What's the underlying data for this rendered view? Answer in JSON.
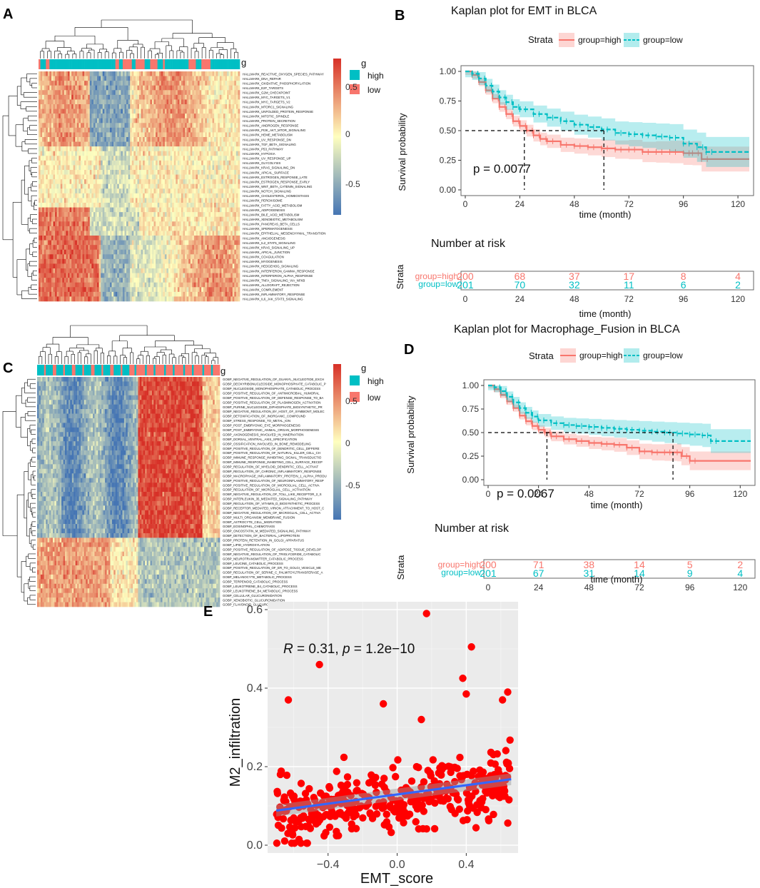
{
  "panel_labels": [
    "A",
    "B",
    "C",
    "D",
    "E"
  ],
  "colors": {
    "high": "#f8766d",
    "low": "#00bfc4",
    "heat_pos": "#d73027",
    "heat_neg": "#4575b4",
    "heat_mid": "#ffffbf",
    "scatter_pt": "#ff0000",
    "fit_line": "#3366ff",
    "panel_bg": "#ebebeb"
  },
  "chart_data": [
    {
      "id": "A",
      "type": "heatmap",
      "annotation_label": "g",
      "legend_title": "g",
      "legend_items": [
        "high",
        "low"
      ],
      "colorbar_ticks": [
        "0.5",
        "0",
        "-0.5"
      ],
      "row_labels": [
        "HALLMARK_REACTIVE_OXYGEN_SPECIES_PATHWAY",
        "HALLMARK_DNA_REPAIR",
        "HALLMARK_OXIDATIVE_PHOSPHORYLATION",
        "HALLMARK_E2F_TARGETS",
        "HALLMARK_G2M_CHECKPOINT",
        "HALLMARK_MYC_TARGETS_V1",
        "HALLMARK_MYC_TARGETS_V2",
        "HALLMARK_MTORC1_SIGNALING",
        "HALLMARK_UNFOLDED_PROTEIN_RESPONSE",
        "HALLMARK_MITOTIC_SPINDLE",
        "HALLMARK_PROTEIN_SECRETION",
        "HALLMARK_ANDROGEN_RESPONSE",
        "HALLMARK_PI3K_AKT_MTOR_SIGNALING",
        "HALLMARK_HEME_METABOLISM",
        "HALLMARK_UV_RESPONSE_DN",
        "HALLMARK_TGF_BETA_SIGNALING",
        "HALLMARK_P53_PATHWAY",
        "HALLMARK_HYPOXIA",
        "HALLMARK_UV_RESPONSE_UP",
        "HALLMARK_GLYCOLYSIS",
        "HALLMARK_KRAS_SIGNALING_DN",
        "HALLMARK_APICAL_SURFACE",
        "HALLMARK_ESTROGEN_RESPONSE_LATE",
        "HALLMARK_ESTROGEN_RESPONSE_EARLY",
        "HALLMARK_WNT_BETA_CATENIN_SIGNALING",
        "HALLMARK_NOTCH_SIGNALING",
        "HALLMARK_CHOLESTEROL_HOMEOSTASIS",
        "HALLMARK_PEROXISOME",
        "HALLMARK_FATTY_ACID_METABOLISM",
        "HALLMARK_ADIPOGENESIS",
        "HALLMARK_BILE_ACID_METABOLISM",
        "HALLMARK_XENOBIOTIC_METABOLISM",
        "HALLMARK_PANCREAS_BETA_CELLS",
        "HALLMARK_SPERMATOGENESIS",
        "HALLMARK_EPITHELIAL_MESENCHYMAL_TRANSITION",
        "HALLMARK_ANGIOGENESIS",
        "HALLMARK_IL2_STAT5_SIGNALING",
        "HALLMARK_KRAS_SIGNALING_UP",
        "HALLMARK_APICAL_JUNCTION",
        "HALLMARK_COAGULATION",
        "HALLMARK_MYOGENESIS",
        "HALLMARK_HEDGEHOG_SIGNALING",
        "HALLMARK_INTERFERON_GAMMA_RESPONSE",
        "HALLMARK_INTERFERON_ALPHA_RESPONSE",
        "HALLMARK_TNFA_SIGNALING_VIA_NFKB",
        "HALLMARK_ALLOGRAFT_REJECTION",
        "HALLMARK_COMPLEMENT",
        "HALLMARK_INFLAMMATORY_RESPONSE",
        "HALLMARK_IL6_JAK_STAT3_SIGNALING"
      ]
    },
    {
      "id": "B",
      "type": "line",
      "title": "Kaplan plot for EMT in BLCA",
      "legend_title": "Strata",
      "legend_items": [
        "group=high",
        "group=low"
      ],
      "xlabel": "time (month)",
      "ylabel": "Survival probability",
      "xlim": [
        0,
        125
      ],
      "ylim": [
        0,
        1
      ],
      "xticks": [
        "0",
        "24",
        "48",
        "72",
        "96",
        "120"
      ],
      "yticks": [
        "0.00",
        "0.25",
        "0.50",
        "0.75",
        "1.00"
      ],
      "pvalue": "p = 0.0077",
      "median_high": 26,
      "median_low": 61,
      "series": [
        {
          "name": "group=high",
          "points": [
            [
              0,
              1
            ],
            [
              3,
              0.97
            ],
            [
              6,
              0.91
            ],
            [
              9,
              0.84
            ],
            [
              12,
              0.77
            ],
            [
              15,
              0.7
            ],
            [
              18,
              0.64
            ],
            [
              21,
              0.58
            ],
            [
              24,
              0.54
            ],
            [
              27,
              0.5
            ],
            [
              30,
              0.46
            ],
            [
              33,
              0.43
            ],
            [
              36,
              0.41
            ],
            [
              42,
              0.38
            ],
            [
              48,
              0.37
            ],
            [
              54,
              0.36
            ],
            [
              60,
              0.35
            ],
            [
              66,
              0.34
            ],
            [
              72,
              0.34
            ],
            [
              78,
              0.32
            ],
            [
              84,
              0.32
            ],
            [
              90,
              0.32
            ],
            [
              96,
              0.31
            ],
            [
              100,
              0.31
            ],
            [
              104,
              0.26
            ],
            [
              125,
              0.26
            ]
          ]
        },
        {
          "name": "group=low",
          "points": [
            [
              0,
              1
            ],
            [
              3,
              0.98
            ],
            [
              6,
              0.94
            ],
            [
              9,
              0.88
            ],
            [
              12,
              0.83
            ],
            [
              15,
              0.78
            ],
            [
              18,
              0.74
            ],
            [
              21,
              0.7
            ],
            [
              24,
              0.68
            ],
            [
              30,
              0.64
            ],
            [
              36,
              0.61
            ],
            [
              42,
              0.58
            ],
            [
              48,
              0.55
            ],
            [
              54,
              0.53
            ],
            [
              60,
              0.51
            ],
            [
              66,
              0.48
            ],
            [
              72,
              0.47
            ],
            [
              78,
              0.46
            ],
            [
              84,
              0.45
            ],
            [
              90,
              0.44
            ],
            [
              96,
              0.39
            ],
            [
              102,
              0.36
            ],
            [
              106,
              0.32
            ],
            [
              125,
              0.32
            ]
          ]
        }
      ],
      "risk_table": {
        "title": "Number at risk",
        "ylabel": "Strata",
        "xlabel": "time (month)",
        "high": [
          "200",
          "68",
          "37",
          "17",
          "8",
          "4"
        ],
        "low": [
          "201",
          "70",
          "32",
          "11",
          "6",
          "2"
        ]
      }
    },
    {
      "id": "C",
      "type": "heatmap",
      "annotation_label": "g",
      "legend_title": "g",
      "legend_items": [
        "high",
        "low"
      ],
      "colorbar_ticks": [
        "0.5",
        "0",
        "-0.5"
      ],
      "row_labels": [
        "GOBP_NEGATIVE_REGULATION_OF_GUANYL_NUCLEOTIDE_EXCH",
        "GOBP_DEOXYRIBONUCLEOSIDE_MONOPHOSPHATE_CATABOLIC_P",
        "GOBP_NUCLEOSIDE_MONOPHOSPHATE_CATABOLIC_PROCESS",
        "GOBP_POSITIVE_REGULATION_OF_ANTIMICROBIAL_HUMORAL",
        "GOBP_POSITIVE_REGULATION_OF_DEFENSE_RESPONSE_TO_BA",
        "GOBP_POSITIVE_REGULATION_OF_PLASMINOGEN_ACTIVATION",
        "GOBP_PURINE_NUCLEOSIDE_DIPHOSPHATE_BIOSYNTHETIC_PR",
        "GOBP_NEGATIVE_REGULATION_BY_HOST_OF_SYMBIONT_MOLEC",
        "GOBP_DETOXIFICATION_OF_INORGANIC_COMPOUND",
        "GOBP_STRESS_RESPONSE_TO_METAL_ION",
        "GOBP_POST_EMBRYONIC_EYE_MORPHOGENESIS",
        "GOBP_POST_EMBRYONIC_ANIMAL_ORGAN_MORPHOGENESIS",
        "GOBP_AXONOGENESIS_INVOLVED_IN_INNERVATION",
        "GOBP_DORSAL_VENTRAL_AXIS_SPECIFICATION",
        "GOBP_OSSIFICATION_INVOLVED_IN_BONE_REMODELING",
        "GOBP_POSITIVE_REGULATION_OF_DENDRITIC_CELL_DIFFERE",
        "GOBP_POSITIVE_REGULATION_OF_NATURAL_KILLER_CELL_CH",
        "GOBP_IMMUNE_RESPONSE_INHIBITING_SIGNAL_TRANSDUCTIO",
        "GOBP_IMMUNE_RESPONSE_INHIBITING_CELL_SURFACE_RECEP",
        "GOBP_REGULATION_OF_MYELOID_DENDRITIC_CELL_ACTIVAT",
        "GOBP_REGULATION_OF_CHRONIC_INFLAMMATORY_RESPONSE",
        "GOBP_MACROPHAGE_INFLAMMATORY_PROTEIN_1_ALPHA_PRODU",
        "GOBP_POSITIVE_REGULATION_OF_NEUROINFLAMMATORY_RESP",
        "GOBP_POSITIVE_REGULATION_OF_MICROGLIAL_CELL_ACTIVA",
        "GOBP_REGULATION_OF_MICROGLIAL_CELL_ACTIVATION",
        "GOBP_NEGATIVE_REGULATION_OF_TOLL_LIKE_RECEPTOR_2_S",
        "GOBP_INTERLEUKIN_35_MEDIATED_SIGNALING_PATHWAY",
        "GOBP_REGULATION_OF_VITAMIN_D_BIOSYNTHETIC_PROCESS",
        "GOBP_RECEPTOR_MEDIATED_VIRION_ATTACHMENT_TO_HOST_C",
        "GOBP_NEGATIVE_REGULATION_OF_MICROGLIAL_CELL_ACTIVA",
        "GOBP_MULTI_ORGANISM_MEMBRANE_FUSION",
        "GOBP_ASTROCYTE_CELL_MIGRATION",
        "GOBP_EOSINOPHIL_CHEMOTAXIS",
        "GOBP_ONCOSTATIN_M_MEDIATED_SIGNALING_PATHWAY",
        "GOBP_DETECTION_OF_BACTERIAL_LIPOPROTEIN",
        "GOBP_PROTEIN_RETENTION_IN_GOLGI_APPARATUS",
        "GOBP_LIPID_HYDROXYLATION",
        "GOBP_POSITIVE_REGULATION_OF_ADIPOSE_TISSUE_DEVELOP",
        "GOBP_NEGATIVE_REGULATION_OF_TRIGLYCERIDE_CATABOLIC",
        "GOBP_NEUROTRANSMITTER_CATABOLIC_PROCESS",
        "GOBP_LEUCINE_CATABOLIC_PROCESS",
        "GOBP_POSITIVE_REGULATION_OF_ER_TO_GOLGI_VESICLE_ME",
        "GOBP_REGULATION_OF_SERINE_C_PALMITOYLTRANSFERASE_A",
        "GOBP_MELANOCYTE_METABOLIC_PROCESS",
        "GOBP_TERPENOID_CATABOLIC_PROCESS",
        "GOBP_LEUKOTRIENE_B4_CATABOLIC_PROCESS",
        "GOBP_LEUKOTRIENE_B4_METABOLIC_PROCESS",
        "GOBP_CELLULAR_GLUCURONIDATION",
        "GOBP_XENOBIOTIC_GLUCURONIDATION",
        "GOBP_FLAVONOID_GLUCURONIDATION"
      ]
    },
    {
      "id": "D",
      "type": "line",
      "title": "Kaplan plot for Macrophage_Fusion in BLCA",
      "legend_title": "Strata",
      "legend_items": [
        "group=high",
        "group=low"
      ],
      "xlabel": "time (month)",
      "ylabel": "Survival probability",
      "xlim": [
        0,
        125
      ],
      "ylim": [
        0,
        1
      ],
      "xticks": [
        "0",
        "24",
        "48",
        "72",
        "96",
        "120"
      ],
      "yticks": [
        "0.00",
        "0.25",
        "0.50",
        "0.75",
        "1.00"
      ],
      "pvalue": "p = 0.0067",
      "median_high": 28,
      "median_low": 88,
      "series": [
        {
          "name": "group=high",
          "points": [
            [
              0,
              1
            ],
            [
              3,
              0.96
            ],
            [
              6,
              0.9
            ],
            [
              9,
              0.83
            ],
            [
              12,
              0.76
            ],
            [
              15,
              0.68
            ],
            [
              18,
              0.62
            ],
            [
              21,
              0.57
            ],
            [
              24,
              0.53
            ],
            [
              27,
              0.5
            ],
            [
              30,
              0.46
            ],
            [
              36,
              0.43
            ],
            [
              42,
              0.41
            ],
            [
              48,
              0.39
            ],
            [
              54,
              0.38
            ],
            [
              60,
              0.37
            ],
            [
              66,
              0.34
            ],
            [
              72,
              0.3
            ],
            [
              78,
              0.29
            ],
            [
              84,
              0.29
            ],
            [
              90,
              0.29
            ],
            [
              92,
              0.25
            ],
            [
              96,
              0.2
            ],
            [
              125,
              0.2
            ]
          ]
        },
        {
          "name": "group=low",
          "points": [
            [
              0,
              1
            ],
            [
              3,
              0.98
            ],
            [
              6,
              0.94
            ],
            [
              9,
              0.88
            ],
            [
              12,
              0.82
            ],
            [
              15,
              0.76
            ],
            [
              18,
              0.71
            ],
            [
              21,
              0.67
            ],
            [
              24,
              0.63
            ],
            [
              30,
              0.6
            ],
            [
              36,
              0.58
            ],
            [
              42,
              0.57
            ],
            [
              48,
              0.56
            ],
            [
              54,
              0.55
            ],
            [
              60,
              0.54
            ],
            [
              66,
              0.53
            ],
            [
              72,
              0.52
            ],
            [
              78,
              0.51
            ],
            [
              84,
              0.5
            ],
            [
              90,
              0.49
            ],
            [
              96,
              0.48
            ],
            [
              102,
              0.47
            ],
            [
              106,
              0.41
            ],
            [
              125,
              0.41
            ]
          ]
        }
      ],
      "risk_table": {
        "title": "Number at risk",
        "ylabel": "Strata",
        "xlabel": "time (month)",
        "high": [
          "200",
          "71",
          "38",
          "14",
          "5",
          "2"
        ],
        "low": [
          "201",
          "67",
          "31",
          "14",
          "9",
          "4"
        ]
      }
    },
    {
      "id": "E",
      "type": "scatter",
      "xlabel": "EMT_score",
      "ylabel": "M2_infiltration",
      "xlim": [
        -0.75,
        0.7
      ],
      "ylim": [
        -0.02,
        0.62
      ],
      "xticks": [
        -0.4,
        0.0,
        0.4
      ],
      "yticks": [
        0.0,
        0.2,
        0.4,
        0.6
      ],
      "xtick_labels": [
        "−0.4",
        "0.0",
        "0.4"
      ],
      "ytick_labels": [
        "0.0",
        "0.2",
        "0.4",
        "0.6"
      ],
      "annotation": "R = 0.31, p = 1.2e−10",
      "annotation_parts": {
        "r_sym": "R",
        "r_val": " = 0.31, ",
        "p_sym": "p",
        "p_val": " = 1.2e−10"
      },
      "fit_line": [
        [
          -0.7,
          0.088
        ],
        [
          0.66,
          0.168
        ]
      ],
      "n_points": 401,
      "outliers": [
        [
          0.17,
          0.59
        ],
        [
          0.43,
          0.505
        ],
        [
          -0.45,
          0.46
        ],
        [
          0.38,
          0.425
        ],
        [
          0.64,
          0.39
        ],
        [
          0.4,
          0.385
        ],
        [
          -0.63,
          0.37
        ],
        [
          -0.08,
          0.36
        ],
        [
          0.61,
          0.37
        ],
        [
          0.14,
          0.32
        ]
      ]
    }
  ]
}
